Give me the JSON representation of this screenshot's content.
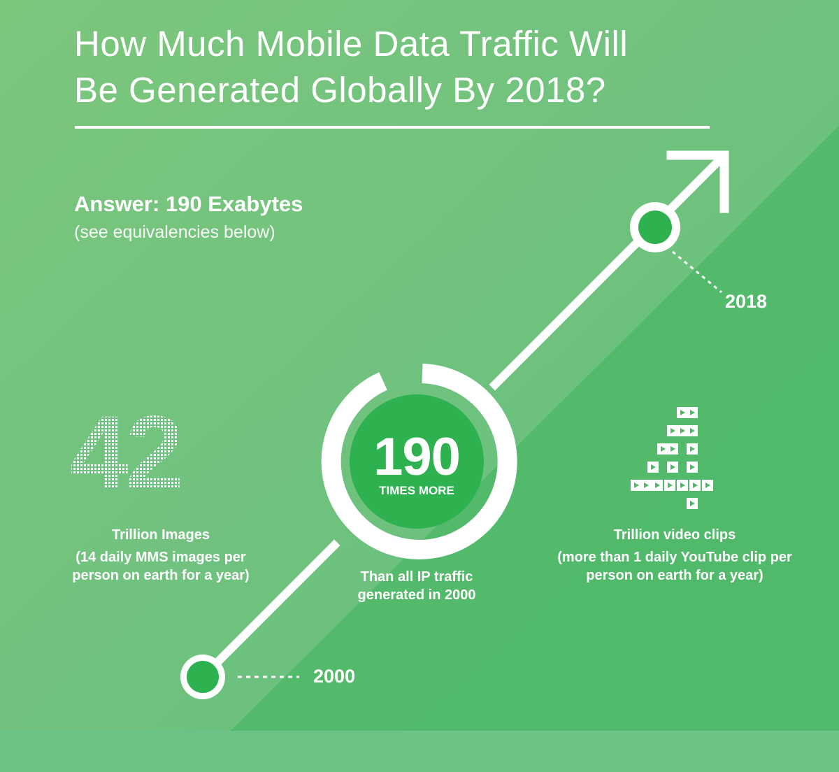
{
  "title": {
    "line1": "How Much Mobile Data Traffic Will",
    "line2": "Be Generated Globally By 2018?"
  },
  "answer": {
    "heading": "Answer: 190 Exabytes",
    "subheading": "(see equivalencies below)"
  },
  "timeline": {
    "start_year": "2000",
    "end_year": "2018"
  },
  "center_stat": {
    "value": "190",
    "unit": "TIMES MORE",
    "caption_line1": "Than all IP traffic",
    "caption_line2": "generated in 2000"
  },
  "left_stat": {
    "value": "42",
    "label": "Trillion Images",
    "detail_line1": "(14 daily MMS images per",
    "detail_line2": "person on earth for a year)"
  },
  "right_stat": {
    "value": "4",
    "label": "Trillion video clips",
    "detail_line1": "(more than 1 daily YouTube clip per",
    "detail_line2": "person on earth for a year)"
  },
  "colors": {
    "background_light": "#6cc17e",
    "background_dark": "#4db866",
    "accent_green": "#2db24f",
    "white": "#ffffff"
  },
  "icons": {
    "left_fill": "image-icon",
    "right_fill": "video-clip-icon",
    "growth": "arrow-up-right-icon"
  }
}
